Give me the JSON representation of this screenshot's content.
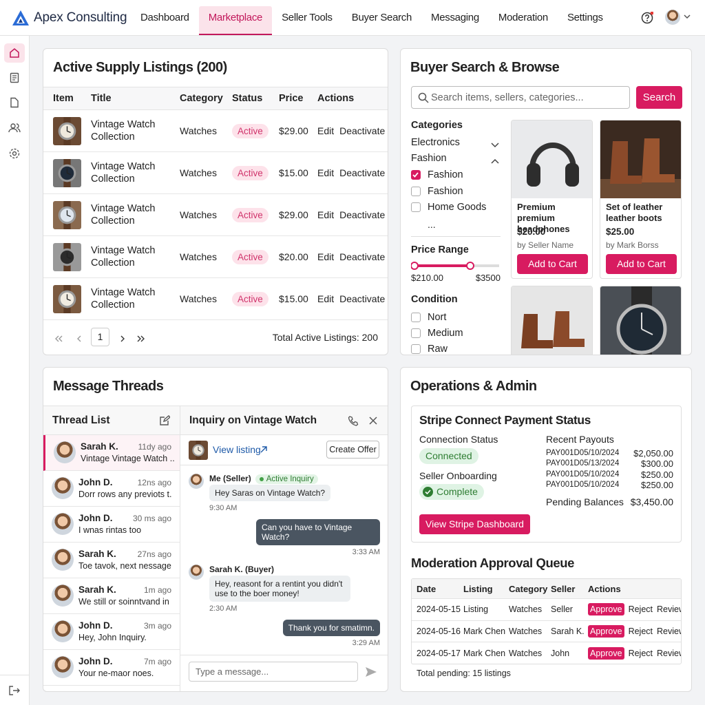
{
  "header": {
    "brand": "Apex Consulting",
    "nav": [
      "Dashboard",
      "Marketplace",
      "Seller Tools",
      "Buyer Search",
      "Messaging",
      "Moderation",
      "Settings"
    ],
    "active_nav": 1
  },
  "listings": {
    "title": "Active Supply Listings (200)",
    "columns": [
      "Item",
      "Title",
      "Category",
      "Status",
      "Price",
      "Actions"
    ],
    "rows": [
      {
        "title": "Vintage Watch Collection",
        "category": "Watches",
        "status": "Active",
        "price": "$29.00"
      },
      {
        "title": "Vintage Watch Collection",
        "category": "Watches",
        "status": "Active",
        "price": "$15.00"
      },
      {
        "title": "Vintage Watch Collection",
        "category": "Watches",
        "status": "Active",
        "price": "$29.00"
      },
      {
        "title": "Vintage Watch Collection",
        "category": "Watches",
        "status": "Active",
        "price": "$20.00"
      },
      {
        "title": "Vintage Watch Collection",
        "category": "Watches",
        "status": "Active",
        "price": "$15.00"
      }
    ],
    "row_actions": [
      "Edit",
      "Deactivate"
    ],
    "page": 1,
    "total": "Total Active Listings: 200"
  },
  "buyer_search": {
    "title": "Buyer Search & Browse",
    "search_placeholder": "Search items, sellers, categories...",
    "search_button": "Search",
    "categories_label": "Categories",
    "categories": [
      {
        "label": "Electronics",
        "expanded": false
      },
      {
        "label": "Fashion",
        "expanded": true
      }
    ],
    "category_checks": [
      {
        "label": "Fashion",
        "checked": true
      },
      {
        "label": "Fashion",
        "checked": false
      },
      {
        "label": "Home Goods",
        "checked": false
      }
    ],
    "more": "...",
    "price_range_label": "Price Range",
    "price_min": "$210.00",
    "price_max": "$3500",
    "condition_label": "Condition",
    "conditions": [
      "Nort",
      "Medium",
      "Raw"
    ],
    "products": [
      {
        "name": "Premium premium headphones",
        "price": "$20.00",
        "seller": "by Seller Name",
        "button": "Add to Cart"
      },
      {
        "name": "Set of leather leather boots",
        "price": "$25.00",
        "seller": "by Mark Borss",
        "button": "Add to Cart"
      }
    ]
  },
  "message_threads": {
    "title": "Message Threads",
    "thread_list_title": "Thread List",
    "threads": [
      {
        "name": "Sarah K.",
        "time": "11dy ago",
        "preview": "Vintage Vintage Watch ..."
      },
      {
        "name": "John D.",
        "time": "12ns ago",
        "preview": "Dorr rows any previots t..."
      },
      {
        "name": "John D.",
        "time": "30 ms ago",
        "preview": "I wnas rintas too"
      },
      {
        "name": "Sarah K.",
        "time": "27ns ago",
        "preview": "Toe tavok, next nessage ..."
      },
      {
        "name": "Sarah K.",
        "time": "1m ago",
        "preview": "We still or soinntvand in ..."
      },
      {
        "name": "John D.",
        "time": "3m ago",
        "preview": "Hey, John Inquiry."
      },
      {
        "name": "John D.",
        "time": "7m ago",
        "preview": "Your ne-maor noes."
      }
    ],
    "selected_thread": 0,
    "conversation": {
      "title": "Inquiry on Vintage Watch",
      "view_listing": "View listing",
      "create_offer": "Create Offer",
      "messages": [
        {
          "sender": "Me (Seller)",
          "badge": "Active Inquiry",
          "text": "Hey Saras on Vintage Watch?",
          "time": "9:30 AM",
          "outgoing": false
        },
        {
          "text": "Can you have to Vintage Watch?",
          "time": "3:33 AM",
          "outgoing": true
        },
        {
          "sender": "Sarah K. (Buyer)",
          "text": "Hey, reasont for a rentint you didn't use to the boer money!",
          "time": "2:30 AM",
          "outgoing": false
        },
        {
          "text": "Thank you for smatimn.",
          "time": "3:29 AM",
          "outgoing": true
        }
      ],
      "input_placeholder": "Type a message..."
    }
  },
  "operations": {
    "title": "Operations & Admin",
    "stripe": {
      "title": "Stripe Connect Payment Status",
      "connection_label": "Connection Status",
      "connection_status": "Connected",
      "onboarding_label": "Seller Onboarding",
      "onboarding_status": "Complete",
      "dashboard_button": "View Stripe Dashboard",
      "payouts_label": "Recent Payouts",
      "payouts": [
        {
          "id": "PAY001D05/10/2024",
          "amount": "$2,050.00"
        },
        {
          "id": "PAY001D05/13/2024",
          "amount": "$300.00"
        },
        {
          "id": "PAY001D05/10/2024",
          "amount": "$250.00"
        },
        {
          "id": "PAY001D05/10/2024",
          "amount": "$250.00"
        }
      ],
      "pending_label": "Pending Balances",
      "pending_amount": "$3,450.00"
    },
    "moderation": {
      "title": "Moderation Approval Queue",
      "columns": [
        "Date",
        "Listing",
        "Category",
        "Seller",
        "Actions"
      ],
      "rows": [
        [
          "2024-05-15",
          "Listing",
          "Watches",
          "Seller"
        ],
        [
          "2024-05-16",
          "Mark Chen",
          "Watches",
          "Sarah K."
        ],
        [
          "2024-05-17",
          "Mark Chen",
          "Watches",
          "John"
        ]
      ],
      "actions": [
        "Approve",
        "Reject",
        "Review"
      ],
      "footer": "Total pending: 15 listings"
    }
  }
}
